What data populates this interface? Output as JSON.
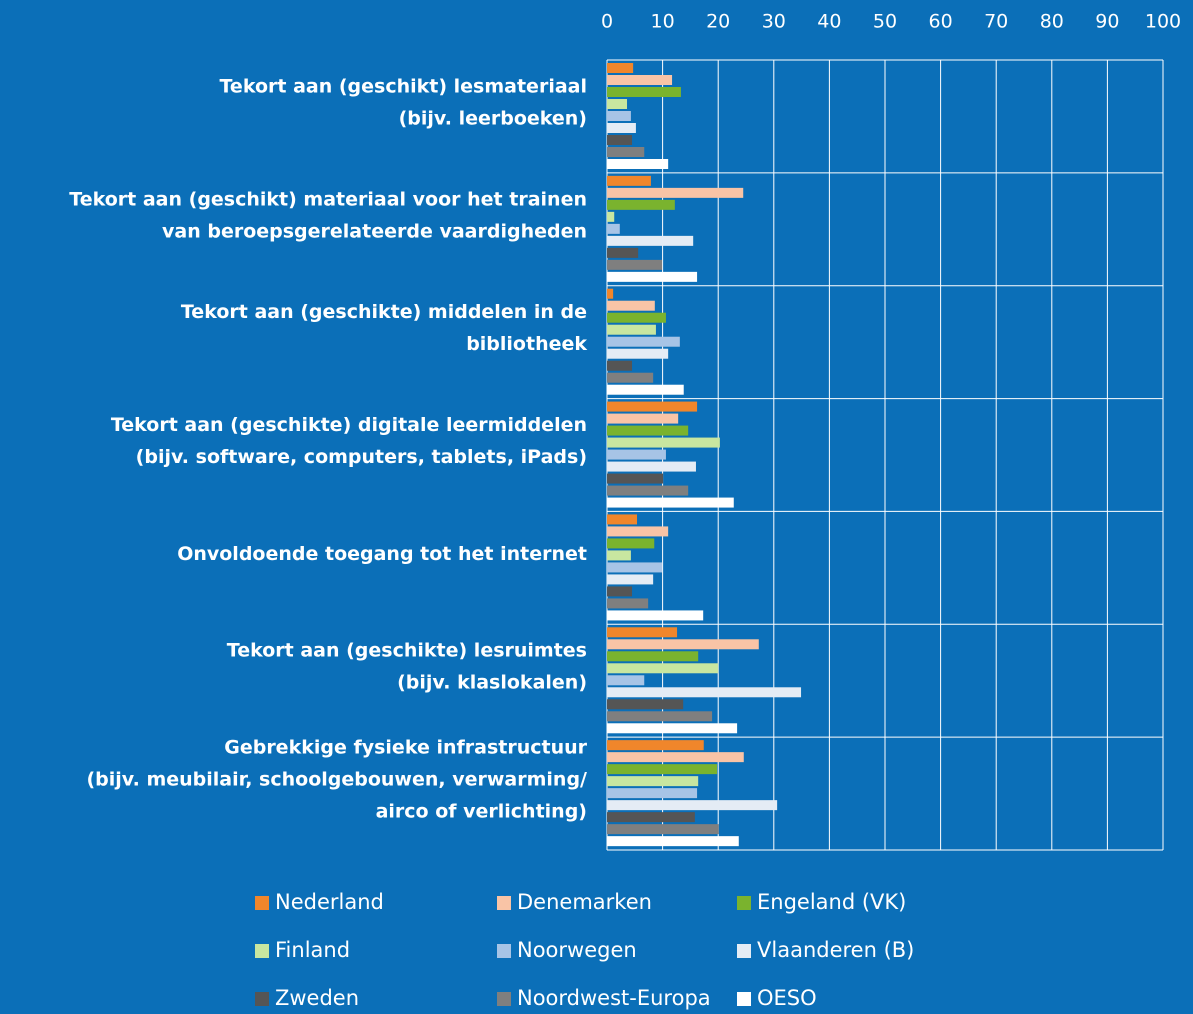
{
  "chart_data": {
    "type": "bar",
    "orientation": "horizontal",
    "categories": [
      "Tekort aan (geschikt) lesmateriaal\n(bijv. leerboeken)",
      "Tekort aan (geschikt) materiaal voor het trainen\nvan beroepsgerelateerde vaardigheden",
      "Tekort aan (geschikte) middelen in de\nbibliotheek",
      "Tekort aan (geschikte) digitale leermiddelen\n(bijv. software, computers, tablets, iPads)",
      "Onvoldoende toegang tot het internet",
      "Tekort aan (geschikte) lesruimtes\n(bijv. klaslokalen)",
      "Gebrekkige fysieke infrastructuur\n(bijv. meubilair, schoolgebouwen, verwarming/\nairco of verlichting)"
    ],
    "series": [
      {
        "name": "Nederland",
        "color": "#f0862b",
        "values": [
          4.7,
          7.9,
          1.1,
          16.2,
          5.4,
          12.6,
          17.4
        ]
      },
      {
        "name": "Denemarken",
        "color": "#f9c4a6",
        "values": [
          11.7,
          24.5,
          8.6,
          12.8,
          11,
          27.3,
          24.6
        ]
      },
      {
        "name": "Engeland (VK)",
        "color": "#7ab32e",
        "values": [
          13.3,
          12.2,
          10.6,
          14.6,
          8.5,
          16.4,
          19.8
        ]
      },
      {
        "name": "Finland",
        "color": "#c8e6a0",
        "values": [
          3.6,
          1.3,
          8.8,
          20.3,
          4.3,
          20,
          16.4
        ]
      },
      {
        "name": "Noorwegen",
        "color": "#a7c4e6",
        "values": [
          4.3,
          2.3,
          13.1,
          10.6,
          9.9,
          6.7,
          16.2
        ]
      },
      {
        "name": "Vlaanderen (B)",
        "color": "#e4ecf5",
        "values": [
          5.2,
          15.5,
          11,
          16,
          8.3,
          34.9,
          30.6
        ]
      },
      {
        "name": "Zweden",
        "color": "#555555",
        "values": [
          4.5,
          5.6,
          4.5,
          10.1,
          4.5,
          13.7,
          15.8
        ]
      },
      {
        "name": "Noordwest-Europa",
        "color": "#7f7f7f",
        "values": [
          6.7,
          9.9,
          8.3,
          14.6,
          7.4,
          18.9,
          20.1
        ]
      },
      {
        "name": "OESO",
        "color": "#ffffff",
        "values": [
          11,
          16.2,
          13.8,
          22.8,
          17.3,
          23.4,
          23.7
        ]
      }
    ],
    "xlim": [
      0,
      100
    ],
    "xticks": [
      0,
      10,
      20,
      30,
      40,
      50,
      60,
      70,
      80,
      90,
      100
    ],
    "grid": true
  }
}
